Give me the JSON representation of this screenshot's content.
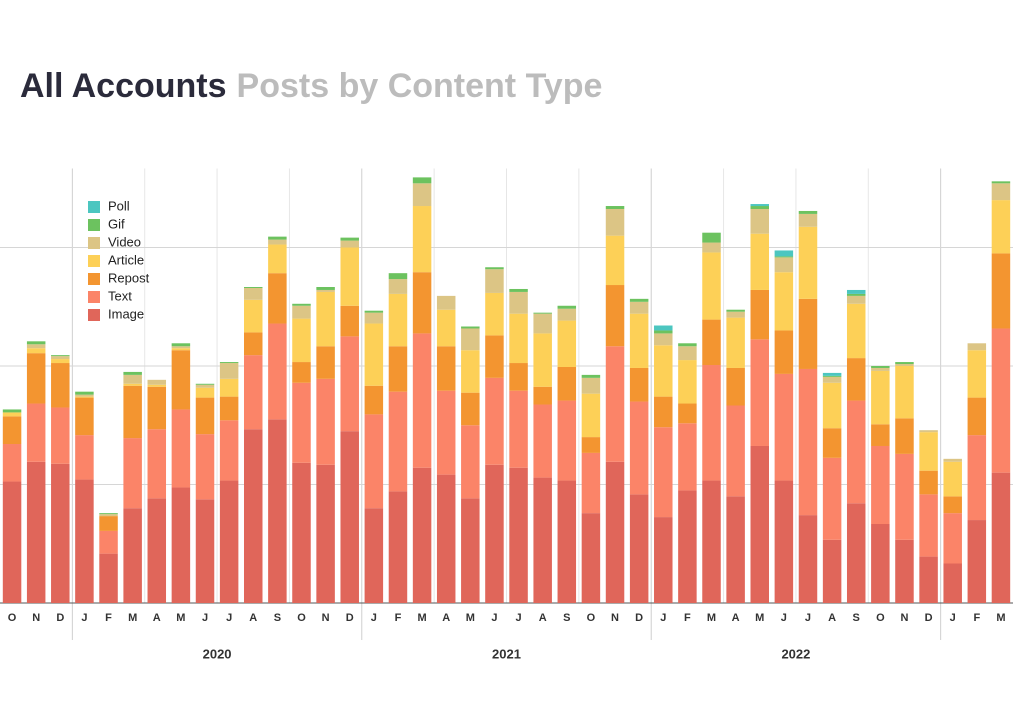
{
  "chart_data": {
    "type": "stacked_bar",
    "title": "All Accounts",
    "subtitle": "Posts by Content Type",
    "categories": [
      "O",
      "N",
      "D",
      "J",
      "F",
      "M",
      "A",
      "M",
      "J",
      "J",
      "A",
      "S",
      "O",
      "N",
      "D",
      "J",
      "F",
      "M",
      "A",
      "M",
      "J",
      "J",
      "A",
      "S",
      "O",
      "N",
      "D",
      "J",
      "F",
      "M",
      "A",
      "M",
      "J",
      "J",
      "A",
      "S",
      "O",
      "N",
      "D",
      "J",
      "F",
      "M"
    ],
    "years": [
      "2020",
      "2021",
      "2022"
    ],
    "series": [
      {
        "name": "Image",
        "color": "#e0665a",
        "values": [
          123,
          143,
          141,
          125,
          50,
          96,
          106,
          117,
          105,
          124,
          176,
          186,
          142,
          140,
          174,
          96,
          113,
          137,
          130,
          106,
          140,
          137,
          127,
          124,
          91,
          143,
          110,
          87,
          114,
          124,
          108,
          159,
          124,
          89,
          64,
          101,
          80,
          64,
          47,
          40,
          84,
          132
        ]
      },
      {
        "name": "Text",
        "color": "#fb8468",
        "values": [
          38,
          59,
          57,
          45,
          23,
          71,
          70,
          79,
          66,
          61,
          75,
          97,
          81,
          87,
          96,
          95,
          101,
          136,
          85,
          74,
          88,
          78,
          74,
          81,
          61,
          117,
          94,
          91,
          68,
          117,
          92,
          108,
          108,
          148,
          83,
          104,
          79,
          87,
          63,
          51,
          86,
          146
        ]
      },
      {
        "name": "Repost",
        "color": "#f39530",
        "values": [
          28,
          51,
          45,
          38,
          15,
          53,
          43,
          60,
          37,
          24,
          23,
          51,
          21,
          33,
          31,
          29,
          46,
          62,
          45,
          33,
          43,
          28,
          18,
          34,
          16,
          62,
          34,
          31,
          20,
          46,
          38,
          50,
          44,
          71,
          30,
          43,
          22,
          36,
          24,
          17,
          38,
          76
        ]
      },
      {
        "name": "Article",
        "color": "#fdd057",
        "values": [
          4,
          5,
          4,
          1,
          0,
          2,
          2,
          2,
          10,
          18,
          33,
          29,
          44,
          55,
          59,
          63,
          53,
          67,
          37,
          43,
          43,
          50,
          54,
          47,
          44,
          50,
          55,
          52,
          44,
          68,
          51,
          57,
          59,
          73,
          46,
          55,
          54,
          53,
          39,
          35,
          48,
          54
        ]
      },
      {
        "name": "Video",
        "color": "#dcc585",
        "values": [
          0,
          4,
          3,
          2,
          2,
          9,
          5,
          2,
          3,
          16,
          12,
          5,
          13,
          2,
          7,
          11,
          15,
          23,
          14,
          22,
          24,
          22,
          20,
          12,
          16,
          27,
          12,
          12,
          14,
          10,
          6,
          25,
          15,
          13,
          6,
          8,
          3,
          2,
          2,
          3,
          7,
          17
        ]
      },
      {
        "name": "Gif",
        "color": "#6cc25f",
        "values": [
          3,
          3,
          1,
          3,
          1,
          3,
          0,
          3,
          1,
          1,
          1,
          3,
          2,
          3,
          3,
          2,
          6,
          6,
          0,
          2,
          2,
          3,
          1,
          3,
          3,
          3,
          3,
          3,
          3,
          10,
          2,
          3,
          1,
          3,
          1,
          2,
          2,
          2,
          0,
          0,
          0,
          2
        ]
      },
      {
        "name": "Poll",
        "color": "#4cc6c0",
        "values": [
          0,
          0,
          0,
          0,
          0,
          0,
          0,
          0,
          0,
          0,
          0,
          0,
          0,
          0,
          0,
          0,
          0,
          0,
          0,
          0,
          0,
          0,
          0,
          0,
          0,
          0,
          0,
          5,
          0,
          0,
          0,
          2,
          6,
          0,
          3,
          4,
          0,
          0,
          0,
          0,
          0,
          0
        ]
      }
    ],
    "ylim": [
      0,
      440
    ],
    "yticks": [
      0,
      120,
      240,
      360
    ],
    "grid": true,
    "legend": "upper left"
  }
}
